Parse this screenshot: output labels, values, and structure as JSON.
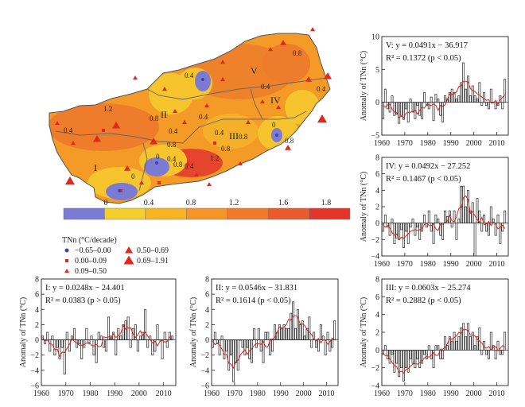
{
  "map": {
    "colorbar_ticks": [
      "0",
      "0.4",
      "0.8",
      "1.2",
      "1.6",
      "1.8"
    ],
    "colorbar_colors": [
      "#7b7bd4",
      "#f3cf2e",
      "#f6b324",
      "#f49527",
      "#ef7b2a",
      "#e95a2c",
      "#e3362b"
    ],
    "colorbar_label": "TNn (°C/decade)",
    "legend": [
      {
        "text": "−0.65–0.00",
        "symbol": "dot",
        "color": "#3a46b0"
      },
      {
        "text": "0.50–0.69",
        "symbol": "triangle-medium",
        "color": "#e0281e"
      },
      {
        "text": "0.00–0.09",
        "symbol": "square",
        "color": "#e0281e"
      },
      {
        "text": "0.69–1.91",
        "symbol": "triangle-large",
        "color": "#e0281e"
      },
      {
        "text": "0.09–0.50",
        "symbol": "triangle-small",
        "color": "#e0281e"
      }
    ],
    "region_labels": [
      "I",
      "II",
      "III",
      "IV",
      "V"
    ],
    "contour_labels": [
      "1.2",
      "0.8",
      "0.4",
      "0.8",
      "0.4",
      "0.4",
      "0.8",
      "0.4",
      "0",
      "0.8",
      "0.4",
      "1.2",
      "0.8",
      "0.4",
      "0.4",
      "0.8",
      "0.4",
      "0",
      "0.8",
      "0",
      "0.4"
    ]
  },
  "chart_data": [
    {
      "type": "bar",
      "panel": "V",
      "title_line1": "V: y = 0.0491x − 36.917",
      "title_line2": "R² = 0.1372 (p < 0.05)",
      "ylabel": "Anomaly of TNn (°C)",
      "ylim": [
        -5,
        10
      ],
      "yticks": [
        -5,
        0,
        5,
        10
      ],
      "xlim": [
        1960,
        2015
      ],
      "xticks": [
        1960,
        1970,
        1980,
        1990,
        2000,
        2010
      ],
      "trend": {
        "slope": 0.0491,
        "intercept": -36.917
      },
      "x": [
        1960,
        1961,
        1962,
        1963,
        1964,
        1965,
        1966,
        1967,
        1968,
        1969,
        1970,
        1971,
        1972,
        1973,
        1974,
        1975,
        1976,
        1977,
        1978,
        1979,
        1980,
        1981,
        1982,
        1983,
        1984,
        1985,
        1986,
        1987,
        1988,
        1989,
        1990,
        1991,
        1992,
        1993,
        1994,
        1995,
        1996,
        1997,
        1998,
        1999,
        2000,
        2001,
        2002,
        2003,
        2004,
        2005,
        2006,
        2007,
        2008,
        2009,
        2010,
        2011,
        2012,
        2013
      ],
      "values": [
        -2.5,
        2.0,
        -1.0,
        -1.5,
        1.0,
        -2.0,
        -1.8,
        -3.2,
        -2.0,
        -2.6,
        -1.0,
        -3.0,
        0.5,
        -1.5,
        -2.5,
        -0.5,
        -2.0,
        -2.5,
        1.5,
        -0.5,
        -1.0,
        0.8,
        -2.8,
        1.2,
        0.5,
        -2.0,
        -3.0,
        1.0,
        0.5,
        1.5,
        2.0,
        1.5,
        0.5,
        1.0,
        3.0,
        6.0,
        2.0,
        4.0,
        1.0,
        2.5,
        1.0,
        0.5,
        3.0,
        -0.5,
        1.5,
        -0.5,
        -1.0,
        2.0,
        0.0,
        -1.0,
        -0.5,
        1.0,
        -1.0,
        3.5
      ]
    },
    {
      "type": "bar",
      "panel": "IV",
      "title_line1": "IV: y = 0.0492x − 27.252",
      "title_line2": "R² = 0.1467 (p < 0.05)",
      "ylabel": "Anomaly of TNn (°C)",
      "ylim": [
        -4,
        8
      ],
      "yticks": [
        -4,
        -2,
        0,
        2,
        4,
        6,
        8
      ],
      "xlim": [
        1960,
        2015
      ],
      "xticks": [
        1960,
        1970,
        1980,
        1990,
        2000,
        2010
      ],
      "trend": {
        "slope": 0.0492,
        "intercept": -27.252
      },
      "x": [
        1960,
        1961,
        1962,
        1963,
        1964,
        1965,
        1966,
        1967,
        1968,
        1969,
        1970,
        1971,
        1972,
        1973,
        1974,
        1975,
        1976,
        1977,
        1978,
        1979,
        1980,
        1981,
        1982,
        1983,
        1984,
        1985,
        1986,
        1987,
        1988,
        1989,
        1990,
        1991,
        1992,
        1993,
        1994,
        1995,
        1996,
        1997,
        1998,
        1999,
        2000,
        2001,
        2002,
        2003,
        2004,
        2005,
        2006,
        2007,
        2008,
        2009,
        2010,
        2011,
        2012,
        2013
      ],
      "values": [
        -1.0,
        1.0,
        -0.5,
        -1.5,
        0.5,
        -2.5,
        -1.8,
        -2.0,
        -0.8,
        -3.0,
        -1.0,
        -2.5,
        -0.5,
        0.5,
        -1.5,
        -0.5,
        -2.0,
        -1.0,
        1.0,
        -0.5,
        1.5,
        -1.0,
        -2.5,
        1.0,
        0.5,
        -1.5,
        -2.0,
        1.5,
        0.8,
        1.5,
        -0.5,
        1.5,
        -2.0,
        0.5,
        4.5,
        4.5,
        2.0,
        4.0,
        1.5,
        2.5,
        -4.0,
        3.0,
        1.5,
        -1.0,
        1.0,
        -1.0,
        -1.5,
        2.0,
        0.5,
        -1.5,
        1.0,
        -2.5,
        -1.0,
        1.5
      ]
    },
    {
      "type": "bar",
      "panel": "I",
      "title_line1": "I: y = 0.0248x − 24.401",
      "title_line2": "R² = 0.0383 (p > 0.05)",
      "ylabel": "Anomaly of TNn (°C)",
      "ylim": [
        -6,
        8
      ],
      "yticks": [
        -6,
        -4,
        -2,
        0,
        2,
        4,
        6,
        8
      ],
      "xlim": [
        1960,
        2015
      ],
      "xticks": [
        1960,
        1970,
        1980,
        1990,
        2000,
        2010
      ],
      "trend": {
        "slope": 0.0248,
        "intercept": -24.401
      },
      "x": [
        1960,
        1961,
        1962,
        1963,
        1964,
        1965,
        1966,
        1967,
        1968,
        1969,
        1970,
        1971,
        1972,
        1973,
        1974,
        1975,
        1976,
        1977,
        1978,
        1979,
        1980,
        1981,
        1982,
        1983,
        1984,
        1985,
        1986,
        1987,
        1988,
        1989,
        1990,
        1991,
        1992,
        1993,
        1994,
        1995,
        1996,
        1997,
        1998,
        1999,
        2000,
        2001,
        2002,
        2003,
        2004,
        2005,
        2006,
        2007,
        2008,
        2009,
        2010,
        2011,
        2012,
        2013
      ],
      "values": [
        0.5,
        -0.5,
        1.0,
        -1.5,
        0.5,
        -2.0,
        -1.0,
        -2.5,
        -1.0,
        -4.5,
        1.0,
        -1.5,
        0.5,
        1.5,
        -1.0,
        -0.5,
        -2.5,
        -1.0,
        1.5,
        -0.5,
        0.5,
        -2.0,
        -3.0,
        1.0,
        0.5,
        -1.0,
        -1.5,
        3.0,
        0.5,
        1.0,
        -2.0,
        1.5,
        0.5,
        2.0,
        2.5,
        3.0,
        -1.0,
        1.5,
        2.0,
        -1.5,
        0.5,
        1.0,
        4.0,
        -1.0,
        0.5,
        -2.0,
        -1.5,
        2.0,
        0.0,
        -2.5,
        1.0,
        -1.0,
        1.0,
        0.5
      ]
    },
    {
      "type": "bar",
      "panel": "II",
      "title_line1": "II: y = 0.0546x − 31.831",
      "title_line2": "R² = 0.1614 (p < 0.05)",
      "ylabel": "Anomaly of TNn (°C)",
      "ylim": [
        -6,
        8
      ],
      "yticks": [
        -6,
        -4,
        -2,
        0,
        2,
        4,
        6,
        8
      ],
      "xlim": [
        1960,
        2015
      ],
      "xticks": [
        1960,
        1970,
        1980,
        1990,
        2000,
        2010
      ],
      "trend": {
        "slope": 0.0546,
        "intercept": -31.831
      },
      "x": [
        1960,
        1961,
        1962,
        1963,
        1964,
        1965,
        1966,
        1967,
        1968,
        1969,
        1970,
        1971,
        1972,
        1973,
        1974,
        1975,
        1976,
        1977,
        1978,
        1979,
        1980,
        1981,
        1982,
        1983,
        1984,
        1985,
        1986,
        1987,
        1988,
        1989,
        1990,
        1991,
        1992,
        1993,
        1994,
        1995,
        1996,
        1997,
        1998,
        1999,
        2000,
        2001,
        2002,
        2003,
        2004,
        2005,
        2006,
        2007,
        2008,
        2009,
        2010,
        2011,
        2012,
        2013
      ],
      "values": [
        -1.0,
        1.0,
        -0.5,
        -2.0,
        0.5,
        -2.5,
        -1.5,
        -4.0,
        -2.0,
        -5.5,
        -3.0,
        -4.0,
        0.0,
        -1.0,
        -2.0,
        -1.0,
        -2.5,
        -3.0,
        1.5,
        -1.0,
        1.5,
        -1.5,
        -3.0,
        1.0,
        1.0,
        -2.0,
        -1.5,
        2.0,
        1.0,
        2.0,
        1.5,
        2.0,
        1.5,
        1.5,
        3.5,
        5.0,
        1.5,
        4.0,
        2.0,
        2.5,
        0.5,
        1.5,
        3.0,
        -1.0,
        1.0,
        -1.0,
        -1.5,
        2.0,
        0.5,
        -2.0,
        1.0,
        -1.5,
        -1.0,
        2.5
      ]
    },
    {
      "type": "bar",
      "panel": "III",
      "title_line1": "III: y = 0.0603x − 25.274",
      "title_line2": "R² = 0.2882 (p < 0.05)",
      "ylabel": "Anomaly of TNn (°C)",
      "ylim": [
        -4,
        8
      ],
      "yticks": [
        -4,
        -2,
        0,
        2,
        4,
        6,
        8
      ],
      "xlim": [
        1960,
        2015
      ],
      "xticks": [
        1960,
        1970,
        1980,
        1990,
        2000,
        2010
      ],
      "trend": {
        "slope": 0.0603,
        "intercept": -25.274
      },
      "x": [
        1960,
        1961,
        1962,
        1963,
        1964,
        1965,
        1966,
        1967,
        1968,
        1969,
        1970,
        1971,
        1972,
        1973,
        1974,
        1975,
        1976,
        1977,
        1978,
        1979,
        1980,
        1981,
        1982,
        1983,
        1984,
        1985,
        1986,
        1987,
        1988,
        1989,
        1990,
        1991,
        1992,
        1993,
        1994,
        1995,
        1996,
        1997,
        1998,
        1999,
        2000,
        2001,
        2002,
        2003,
        2004,
        2005,
        2006,
        2007,
        2008,
        2009,
        2010,
        2011,
        2012,
        2013
      ],
      "values": [
        -0.5,
        0.5,
        -1.0,
        -1.5,
        -0.5,
        -2.5,
        -1.5,
        -3.0,
        -2.0,
        -3.5,
        -2.0,
        -2.5,
        -1.0,
        -1.5,
        -2.0,
        -1.0,
        -2.0,
        -1.5,
        -0.5,
        -1.0,
        0.5,
        -1.0,
        -2.0,
        0.5,
        0.5,
        -1.0,
        -1.0,
        1.5,
        0.5,
        1.5,
        1.0,
        2.0,
        1.0,
        1.5,
        2.5,
        3.0,
        1.5,
        3.0,
        1.5,
        2.0,
        0.5,
        1.5,
        2.5,
        -0.5,
        1.0,
        -0.5,
        -1.0,
        2.0,
        0.5,
        -1.0,
        1.0,
        -0.5,
        -0.5,
        2.0
      ]
    }
  ]
}
